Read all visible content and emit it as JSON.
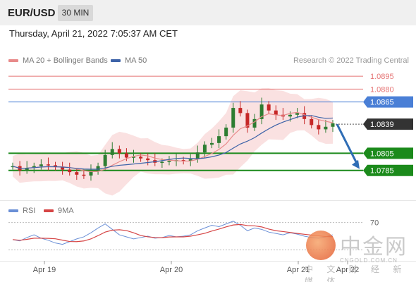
{
  "header": {
    "symbol": "EUR/USD",
    "timeframe": "30 MIN",
    "datetime": "Thursday, April 21, 2022 7:05:37 AM CET"
  },
  "legend": {
    "ma20_label": "MA 20 + Bollinger Bands",
    "ma50_label": "MA 50",
    "credit": "Research © 2022 Trading Central"
  },
  "colors": {
    "bullish": "#2e7d32",
    "resistance": "#e57373",
    "pivot": "#4a7fd6",
    "support": "#1b8a1b",
    "current": "#333333",
    "arrow": "#2f6db5",
    "ma20": "#e88a8a",
    "ma50": "#3d63a8",
    "band": "#f8d7d7",
    "rsi": "#6a8fd6",
    "rsi_ma": "#d64545"
  },
  "levels": [
    {
      "label": "1.0895",
      "kind": "resistance"
    },
    {
      "label": "1.0880",
      "kind": "resistance"
    },
    {
      "label": "1.0865",
      "kind": "pivot"
    },
    {
      "label": "1.0839",
      "kind": "current"
    },
    {
      "label": "1.0805",
      "kind": "support"
    },
    {
      "label": "1.0785",
      "kind": "support"
    }
  ],
  "rsi_panel": {
    "rsi_label": "RSI",
    "ma_label": "9MA",
    "level_label": "70"
  },
  "watermark": {
    "chinese": "中金网",
    "url": "CNGOLD.COM.CN",
    "subtitle": "中 文 财 经 新 媒 体"
  },
  "chart_data": {
    "type": "candlestick",
    "x_ticks": [
      "Apr 19",
      "Apr 20",
      "Apr 21",
      "Apr 22"
    ],
    "price_levels": [
      1.0895,
      1.088,
      1.0865,
      1.0839,
      1.0805,
      1.0785
    ],
    "ylim": [
      1.0765,
      1.0905
    ],
    "last_price": 1.0839,
    "projected_target": 1.0785,
    "series": [
      {
        "name": "MA 20 + Bollinger Bands"
      },
      {
        "name": "MA 50"
      }
    ],
    "price_path": [
      1.079,
      1.0785,
      1.0788,
      1.079,
      1.0792,
      1.0791,
      1.0789,
      1.0786,
      1.0783,
      1.078,
      1.0779,
      1.0784,
      1.079,
      1.0803,
      1.081,
      1.0805,
      1.08,
      1.0801,
      1.0799,
      1.0797,
      1.0794,
      1.0795,
      1.0796,
      1.0797,
      1.0796,
      1.0798,
      1.0806,
      1.0815,
      1.0817,
      1.0825,
      1.0835,
      1.0858,
      1.0852,
      1.0835,
      1.0845,
      1.0862,
      1.0855,
      1.085,
      1.0848,
      1.085,
      1.0852,
      1.0845,
      1.0838,
      1.0833,
      1.0836,
      1.084
    ],
    "rsi": {
      "level": 70,
      "values": [
        45,
        43,
        48,
        52,
        47,
        44,
        40,
        38,
        42,
        46,
        49,
        55,
        62,
        68,
        60,
        52,
        49,
        46,
        48,
        50,
        47,
        48,
        51,
        49,
        50,
        52,
        58,
        62,
        66,
        64,
        68,
        72,
        66,
        58,
        62,
        60,
        56,
        54,
        52,
        55,
        53,
        50,
        48,
        47,
        49,
        52
      ]
    }
  }
}
